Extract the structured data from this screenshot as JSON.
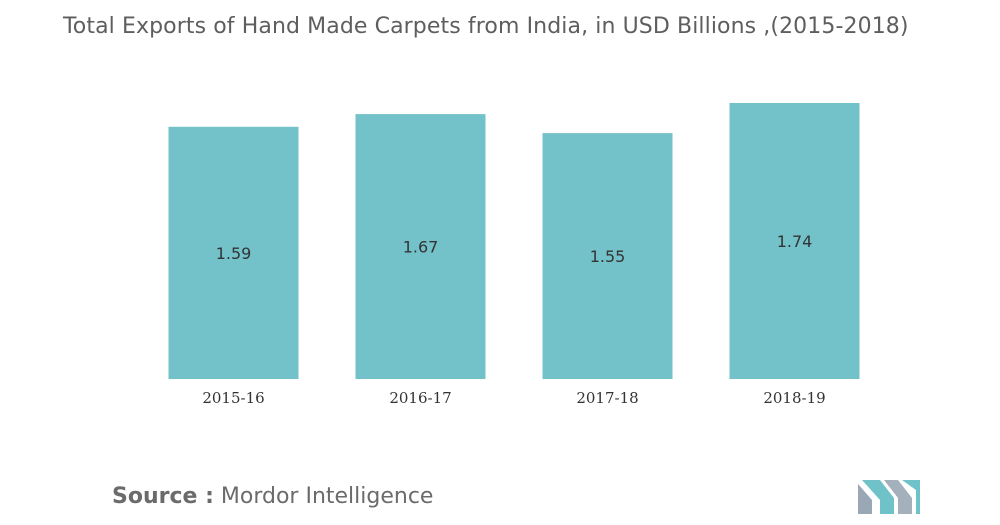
{
  "chart_data": {
    "type": "bar",
    "title": "Total Exports of Hand Made Carpets from India, in USD Billions ,(2015-2018)",
    "categories": [
      "2015-16",
      "2016-17",
      "2017-18",
      "2018-19"
    ],
    "values": [
      1.59,
      1.67,
      1.55,
      1.74
    ],
    "data_labels": [
      "1.59",
      "1.67",
      "1.55",
      "1.74"
    ],
    "ylim": [
      0,
      1.74
    ],
    "grid": false,
    "legend": "none",
    "bar_color": "#74c2c9"
  },
  "source": {
    "label": "Source :",
    "value": "Mordor Intelligence"
  },
  "logo": {
    "icon": "mordor-intelligence-logo-icon",
    "colors": [
      "#9aa7b5",
      "#6fc3c8"
    ]
  }
}
